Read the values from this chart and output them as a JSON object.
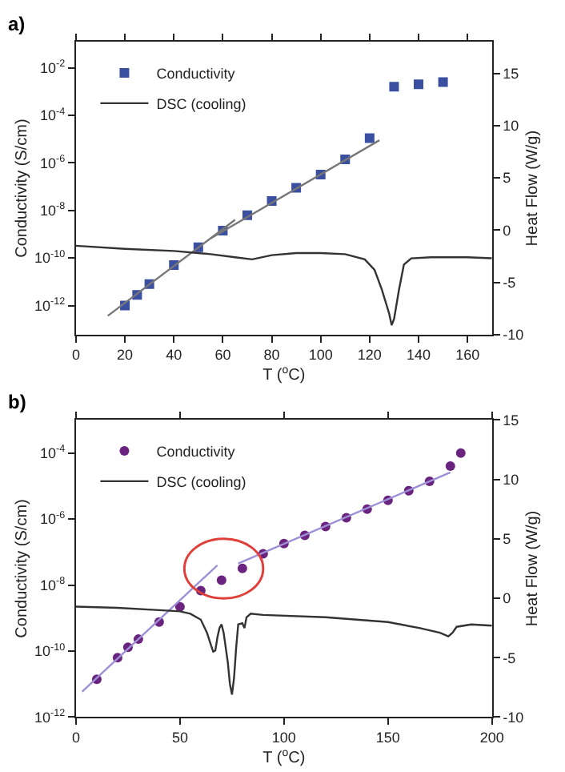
{
  "chart_data": [
    {
      "type": "scatter",
      "xlabel": "T ($^{o}$C)",
      "ylabel": "Conductivity (S/cm)",
      "y2label": "Heat Flow (W/g)",
      "annotations": [
        "a)"
      ],
      "log": "y",
      "legend": "top left",
      "xlim": [
        0,
        170
      ],
      "xticks": [
        0,
        20,
        40,
        60,
        80,
        100,
        120,
        140,
        160
      ],
      "ylim": [
        6e-14,
        0.12
      ],
      "yticks": [
        {
          "value": 1e-12,
          "label": "10$^{-12}$"
        },
        {
          "value": 1e-10,
          "label": "10$^{-10}$"
        },
        {
          "value": 1e-08,
          "label": "10$^{-8}$"
        },
        {
          "value": 1e-06,
          "label": "10$^{-6}$"
        },
        {
          "value": 0.0001,
          "label": "10$^{-4}$"
        },
        {
          "value": 0.01,
          "label": "10$^{-2}$"
        }
      ],
      "y2lim": [
        -10,
        18
      ],
      "y2ticks": [
        -10,
        -5,
        0,
        5,
        10,
        15
      ],
      "series": [
        {
          "name": "Conductivity",
          "marker": "square",
          "color": "#3a4fa0",
          "x": [
            20,
            25,
            30,
            40,
            50,
            60,
            70,
            80,
            90,
            100,
            110,
            120,
            130,
            140,
            150
          ],
          "values": [
            1e-12,
            2.8e-12,
            7.9e-12,
            5e-11,
            2.8e-10,
            1.4e-09,
            6.3e-09,
            2.5e-08,
            8.9e-08,
            3.2e-07,
            1.4e-06,
            1.1e-05,
            0.0016,
            0.002,
            0.0025
          ]
        },
        {
          "type": "line",
          "color": "#777777",
          "x": [
            13,
            65
          ],
          "values": [
            3.7e-13,
            4e-09
          ]
        },
        {
          "type": "line",
          "color": "#777777",
          "x": [
            55,
            124
          ],
          "values": [
            6.6e-10,
            8.9e-06
          ]
        },
        {
          "name": "DSC (cooling)",
          "type": "line",
          "axis": "y2",
          "color": "#333333",
          "x": [
            0,
            20,
            40,
            55,
            65,
            72,
            80,
            90,
            100,
            110,
            118,
            122,
            125,
            128,
            129,
            130,
            132,
            134,
            137,
            145,
            160,
            170
          ],
          "values": [
            -1.5,
            -1.8,
            -2.0,
            -2.3,
            -2.6,
            -2.8,
            -2.4,
            -2.2,
            -2.2,
            -2.3,
            -2.8,
            -3.8,
            -5.7,
            -8.0,
            -9.1,
            -8.5,
            -5.7,
            -3.3,
            -2.7,
            -2.6,
            -2.6,
            -2.7
          ]
        }
      ]
    },
    {
      "type": "scatter",
      "xlabel": "T ($^{o}$C)",
      "ylabel": "Conductivity (S/cm)",
      "y2label": "Heat Flow (W/g)",
      "annotations": [
        "b)"
      ],
      "log": "y",
      "legend": "top left",
      "xlim": [
        0,
        200
      ],
      "xticks": [
        0,
        50,
        100,
        150,
        200
      ],
      "ylim": [
        1e-12,
        0.001
      ],
      "yticks": [
        {
          "value": 1e-12,
          "label": "10$^{-12}$"
        },
        {
          "value": 1e-10,
          "label": "10$^{-10}$"
        },
        {
          "value": 1e-08,
          "label": "10$^{-8}$"
        },
        {
          "value": 1e-06,
          "label": "10$^{-6}$"
        },
        {
          "value": 0.0001,
          "label": "10$^{-4}$"
        }
      ],
      "y2lim": [
        -10,
        15
      ],
      "y2ticks": [
        -10,
        -5,
        0,
        5,
        10,
        15
      ],
      "series": [
        {
          "name": "Conductivity",
          "marker": "circle",
          "color": "#6a2480",
          "x": [
            10,
            20,
            25,
            30,
            40,
            50,
            60,
            70,
            80,
            90,
            100,
            110,
            120,
            130,
            140,
            150,
            160,
            170,
            180,
            185
          ],
          "values": [
            1.4e-11,
            6.3e-11,
            1.3e-10,
            2.3e-10,
            7.6e-10,
            2.2e-09,
            6.8e-09,
            1.4e-08,
            3.2e-08,
            8.9e-08,
            1.8e-07,
            3.2e-07,
            5.9e-07,
            1.1e-06,
            2e-06,
            3.7e-06,
            7.2e-06,
            1.4e-05,
            4e-05,
            0.0001
          ]
        },
        {
          "type": "line",
          "color": "#9e8fd6",
          "x": [
            3,
            68
          ],
          "values": [
            5.9e-12,
            4e-08
          ]
        },
        {
          "type": "line",
          "color": "#9e8fd6",
          "x": [
            78,
            180
          ],
          "values": [
            4.5e-08,
            2.6e-05
          ]
        },
        {
          "name": "DSC (cooling)",
          "type": "line",
          "axis": "y2",
          "color": "#333333",
          "x": [
            0,
            20,
            40,
            50,
            55,
            60,
            63,
            65,
            66,
            67,
            68,
            69,
            70,
            71,
            73,
            74,
            75,
            76,
            77,
            78,
            80,
            81,
            82,
            84,
            90,
            120,
            150,
            165,
            175,
            179,
            181,
            183,
            190,
            200
          ],
          "values": [
            -0.7,
            -0.8,
            -1.0,
            -1.1,
            -1.3,
            -1.8,
            -2.9,
            -4.0,
            -4.5,
            -4.4,
            -3.3,
            -2.5,
            -2.2,
            -2.9,
            -5.4,
            -7.2,
            -8.1,
            -6.7,
            -4.2,
            -2.2,
            -2.1,
            -2.5,
            -1.6,
            -1.3,
            -1.4,
            -1.6,
            -2.0,
            -2.5,
            -2.9,
            -3.2,
            -2.9,
            -2.4,
            -2.2,
            -2.3
          ]
        }
      ]
    }
  ]
}
